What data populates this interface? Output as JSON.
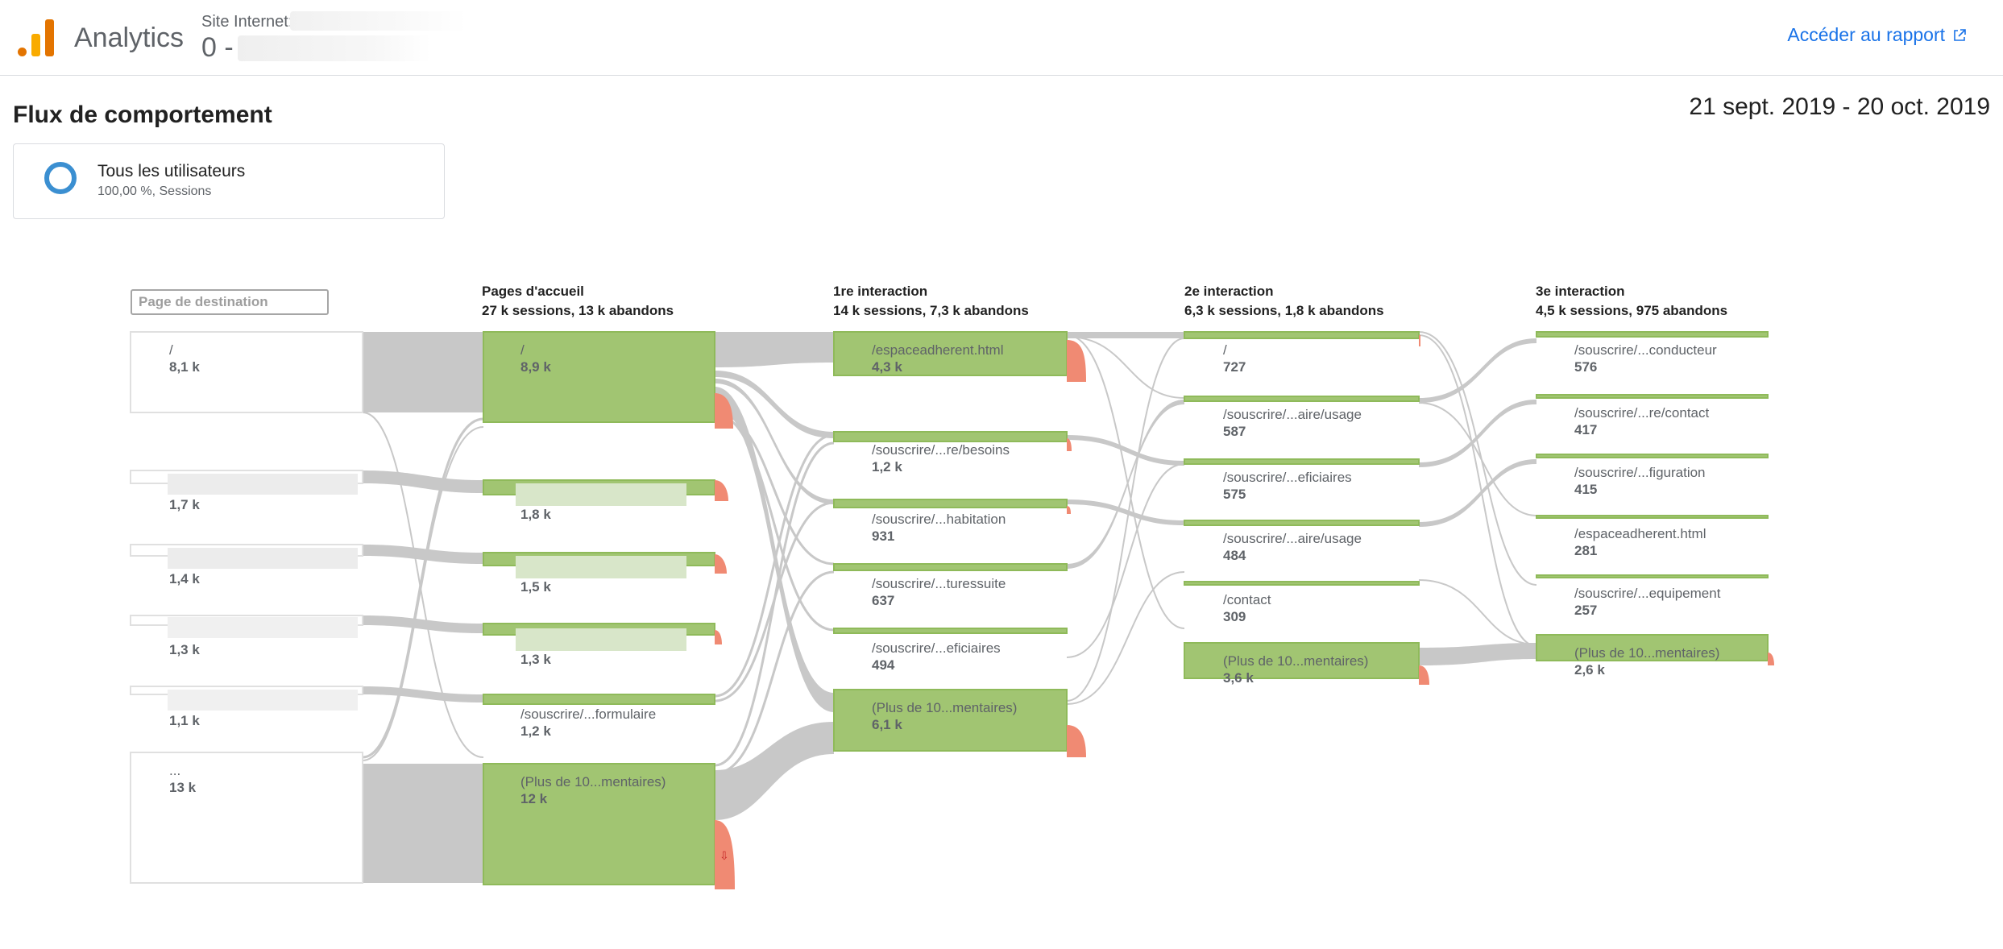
{
  "header": {
    "app_name": "Analytics",
    "site_label": "Site Internet:",
    "site_value": "0 -",
    "report_link": "Accéder au rapport"
  },
  "page": {
    "title": "Flux de comportement",
    "date_range": "21 sept. 2019 - 20 oct. 2019"
  },
  "segment": {
    "name": "Tous les utilisateurs",
    "meta": "100,00 %, Sessions"
  },
  "flow": {
    "dimension_selector": "Page de destination",
    "columns": [
      {
        "title": "Pages d'accueil",
        "stats": "27 k sessions, 13 k abandons"
      },
      {
        "title": "1re interaction",
        "stats": "14 k sessions, 7,3 k abandons"
      },
      {
        "title": "2e interaction",
        "stats": "6,3 k sessions, 1,8 k abandons"
      },
      {
        "title": "3e interaction",
        "stats": "4,5 k sessions, 975 abandons"
      }
    ],
    "sources": [
      {
        "name": "/",
        "value": "8,1 k"
      },
      {
        "name": "",
        "value": "1,7 k"
      },
      {
        "name": "",
        "value": "1,4 k"
      },
      {
        "name": "",
        "value": "1,3 k"
      },
      {
        "name": "",
        "value": "1,1 k"
      },
      {
        "name": "...",
        "value": "13 k"
      }
    ],
    "landing": [
      {
        "name": "/",
        "value": "8,9 k"
      },
      {
        "name": "",
        "value": "1,8 k"
      },
      {
        "name": "",
        "value": "1,5 k"
      },
      {
        "name": "",
        "value": "1,3 k"
      },
      {
        "name": "/souscrire/...formulaire",
        "value": "1,2 k"
      },
      {
        "name": "(Plus de 10...mentaires)",
        "value": "12 k"
      }
    ],
    "interaction_1": [
      {
        "name": "/espaceadherent.html",
        "value": "4,3 k"
      },
      {
        "name": "/souscrire/...re/besoins",
        "value": "1,2 k"
      },
      {
        "name": "/souscrire/...habitation",
        "value": "931"
      },
      {
        "name": "/souscrire/...turessuite",
        "value": "637"
      },
      {
        "name": "/souscrire/...eficiaires",
        "value": "494"
      },
      {
        "name": "(Plus de 10...mentaires)",
        "value": "6,1 k"
      }
    ],
    "interaction_2": [
      {
        "name": "/",
        "value": "727"
      },
      {
        "name": "/souscrire/...aire/usage",
        "value": "587"
      },
      {
        "name": "/souscrire/...eficiaires",
        "value": "575"
      },
      {
        "name": "/souscrire/...aire/usage",
        "value": "484"
      },
      {
        "name": "/contact",
        "value": "309"
      },
      {
        "name": "(Plus de 10...mentaires)",
        "value": "3,6 k"
      }
    ],
    "interaction_3": [
      {
        "name": "/souscrire/...conducteur",
        "value": "576"
      },
      {
        "name": "/souscrire/...re/contact",
        "value": "417"
      },
      {
        "name": "/souscrire/...figuration",
        "value": "415"
      },
      {
        "name": "/espaceadherent.html",
        "value": "281"
      },
      {
        "name": "/souscrire/...equipement",
        "value": "257"
      },
      {
        "name": "(Plus de 10...mentaires)",
        "value": "2,6 k"
      }
    ]
  },
  "colors": {
    "node_green": "#a1c572",
    "node_green_dark": "#8fba5a",
    "drop_red": "#f08a73",
    "link_gray": "#c8c8c8",
    "accent_blue": "#1a73e8",
    "segment_blue": "#3b8fd1"
  }
}
